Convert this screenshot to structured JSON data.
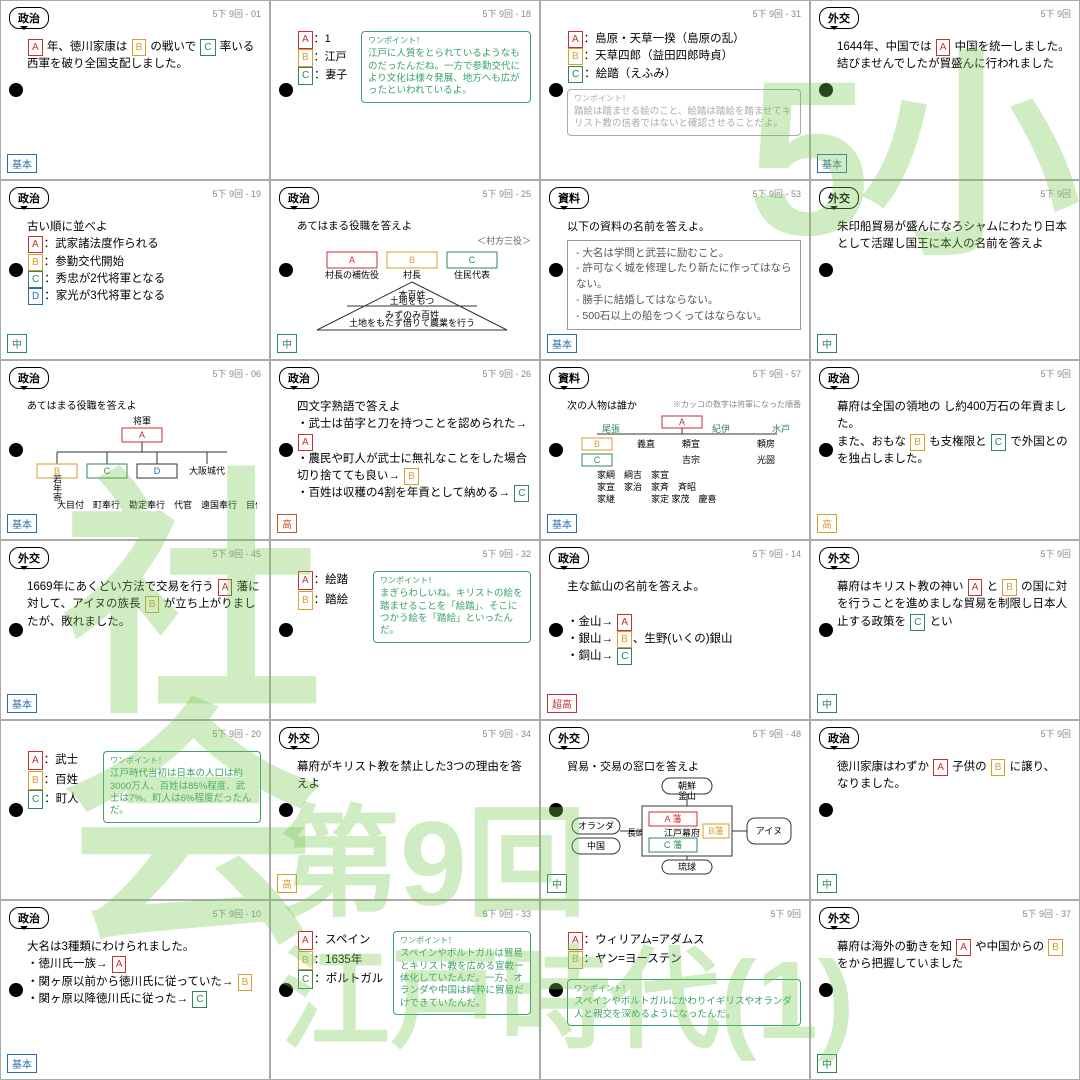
{
  "watermark_top_right": "5小",
  "watermark_left": "社会",
  "watermark_bottom_1": "第9回",
  "watermark_bottom_2": "江戸時代(1)",
  "cards": [
    {
      "tag": "政治",
      "num": "5下 9回 - 01",
      "lvl": "b",
      "text": "<span class='A'></span> 年、徳川家康は <span class='B'></span> の戦いで <span class='C'></span> 率いる西軍を破り全国支配しました。"
    },
    {
      "tag": "",
      "num": "5下 9回 - 18",
      "lvl": "",
      "html": "<div class='row'><div style='flex:0 0 58px;font-size:11px;line-height:1.6'><span class='A'></span>：1<br><span class='B'></span>：江戸<br><span class='C'></span>：妻子</div><div class='tip' style='flex:1'><span class='th'>ワンポイント！</span>江戸に人質をとられているようなものだったんだね。一方で参勤交代により文化は様々発展、地方へも広がったといわれているよ。</div></div>"
    },
    {
      "tag": "",
      "num": "5下 9回 - 31",
      "lvl": "",
      "html": "<div style='font-size:11.5px;line-height:1.5'><span class='A'></span>：島原・天草一揆（島原の乱）<br><span class='B'></span>：天草四郎（益田四郎時貞）<br><span class='C'></span>：絵踏（えふみ）</div><div class='tip g' style='margin-top:6px'><span class='th'>ワンポイント！</span>踏絵は踏ませる絵のこと、絵踏は踏絵を踏ませてキリスト教の信者ではないと確認させることだよ。</div>"
    },
    {
      "tag": "外交",
      "num": "5下 9回",
      "lvl": "b",
      "text": "1644年、中国では <span class='A'></span> 中国を統一しました。結びませんでしたが貿盛んに行われました"
    },
    {
      "tag": "政治",
      "num": "5下 9回 - 19",
      "lvl": "m",
      "html": "古い順に並べよ<br><span class='A'></span>：武家諸法度作られる<br><span class='B'></span>：参勤交代開始<br><span class='C'></span>：秀忠が2代将軍となる<br><span class='D'></span>：家光が3代将軍となる"
    },
    {
      "tag": "政治",
      "num": "5下 9回 - 25",
      "lvl": "m",
      "html": "<div style='font-size:10.5px'>あてはまる役職を答えよ<br><div style='text-align:right;font-size:9px;color:#666'>＜村方三役＞</div></div><svg class='mini' width='230' height='88' viewBox='0 0 230 88'><rect class='rbox' x='30' y='4' width='50' height='16'/><text x='55' y='15' text-anchor='middle' fill='#c53030'>A</text><rect class='ybox' x='90' y='4' width='50' height='16'/><text x='115' y='15' text-anchor='middle' fill='#d69e2e'>B</text><rect class='gbox' x='150' y='4' width='50' height='16'/><text x='175' y='15' text-anchor='middle' fill='#2f855a'>C</text><text x='55' y='30' text-anchor='middle' font-size='8'>村長の補佐役</text><text x='115' y='30' text-anchor='middle' font-size='8'>村長</text><text x='175' y='30' text-anchor='middle' font-size='8'>住民代表</text><polygon class='ln' points='115,34 210,82 20,82'/><line class='ln' x1='50' y1='58' x2='180' y2='58'/><text x='115' y='50' text-anchor='middle'>本百姓</text><text x='115' y='56' text-anchor='middle' font-size='7'>土地をもつ</text><text x='115' y='70' text-anchor='middle'>みずのみ百姓</text><text x='115' y='78' text-anchor='middle' font-size='7'>土地をもたず借りて農業を行う</text></svg>"
    },
    {
      "tag": "資料",
      "num": "5下 9回 - 53",
      "lvl": "b",
      "html": "<div style='font-size:11px'>以下の資料の名前を答えよ。</div><div style='border:1px solid #999;padding:5px 8px;font-size:10.5px;line-height:1.5;margin-top:4px;color:#555'>- 大名は学問と武芸に励むこと。<br>- 許可なく城を修理したり新たに作ってはならない。<br>- 勝手に結婚してはならない。<br>- 500石以上の船をつくってはならない。</div>"
    },
    {
      "tag": "外交",
      "num": "5下 9回",
      "lvl": "m",
      "text": "朱印船貿易が盛んになろシャムにわたり日本として活躍し国王に本人の名前を答えよ"
    },
    {
      "tag": "政治",
      "num": "5下 9回 - 06",
      "lvl": "b",
      "html": "<div style='font-size:10px'>あてはまる役職を答えよ</div><svg class='mini' width='230' height='100' viewBox='0 0 230 100'><text x='115' y='10' text-anchor='middle'>将軍</text><rect class='rbox' x='95' y='14' width='40' height='14'/><text x='115' y='24' text-anchor='middle' fill='#c53030'>A</text><line class='ln' x1='115' y1='28' x2='115' y2='38'/><line class='ln' x1='30' y1='38' x2='200' y2='38'/><line class='ln' x1='30' y1='38' x2='30' y2='50'/><line class='ln' x1='80' y1='38' x2='80' y2='50'/><line class='ln' x1='130' y1='38' x2='130' y2='50'/><line class='ln' x1='180' y1='38' x2='180' y2='50'/><rect class='ybox' x='10' y='50' width='40' height='14'/><text x='30' y='60' text-anchor='middle' fill='#d69e2e'>B</text><text x='30' y='74' text-anchor='middle' font-size='7' writing-mode='tb'>若年寄</text><rect class='gbox' x='60' y='50' width='40' height='14'/><text x='80' y='60' text-anchor='middle' fill='#2f855a'>C</text><rect class='box' x='110' y='50' width='40' height='14' stroke='#2b6cb0'/><text x='130' y='60' text-anchor='middle' fill='#2b6cb0'>D</text><text x='180' y='60' text-anchor='middle' font-size='8'>大阪城代</text><text x='30' y='94' font-size='7'>大目付　町奉行　勘定奉行　代官　遠国奉行　目付</text></svg>"
    },
    {
      "tag": "政治",
      "num": "5下 9回 - 26",
      "lvl": "h",
      "html": "四文字熟語で答えよ<br>・武士は苗字と刀を持つことを認められた→ <span class='A'></span><br>・農民や町人が武士に無礼なことをした場合切り捨てても良い→ <span class='B'></span><br>・百姓は収穫の4割を年貢として納める→ <span class='C'></span>"
    },
    {
      "tag": "資料",
      "num": "5下 9回 - 57",
      "lvl": "b",
      "html": "<div style='font-size:10px'>次の人物は誰か <span style='font-size:8px;color:#888;float:right'>※カッコの数字は将軍になった順番</span></div><svg class='mini' width='230' height='100' viewBox='0 0 230 100'><line class='ln' x1='115' y1='8' x2='115' y2='20'/><rect class='rbox' x='95' y='2' width='40' height='12'/><text x='115' y='11' text-anchor='middle' fill='#c53030'>A</text><line class='ln' x1='30' y1='20' x2='210' y2='20'/><text x='35' y='18' font-size='8' fill='#2f855a'>尾張</text><text x='145' y='18' font-size='8' fill='#2f855a'>紀伊</text><text x='205' y='18' font-size='8' fill='#2f855a'>水戸</text><rect class='ybox' x='15' y='24' width='30' height='12'/><text x='30' y='33' text-anchor='middle' fill='#d69e2e'>B</text><text x='70' y='33'>義直</text><text x='115' y='33'>頼宣</text><text x='190' y='33'>頼房</text><rect class='gbox' x='15' y='40' width='30' height='12'/><text x='30' y='49' text-anchor='middle' fill='#2f855a'>C</text><text x='115' y='49'>吉宗</text><text x='190' y='49'>光圀</text><text x='30' y='64'>家綱　綱吉　家宣</text><text x='30' y='76'>家宣　家治　家斉　斉昭</text><text x='30' y='88'>家継　　　　家定 家茂　慶喜</text></svg>"
    },
    {
      "tag": "政治",
      "num": "5下 9回",
      "lvl": "y",
      "text": "幕府は全国の領地の し約400万石の年貢ました。<br>また、おもな <span class='B'></span> も支権限と <span class='C'></span> で外国とのを独占しました。"
    },
    {
      "tag": "外交",
      "num": "5下 9回 - 45",
      "lvl": "b",
      "text": "1669年にあくどい方法で交易を行う <span class='A'></span> 藩に対して、アイヌの族長 <span class='B'></span> が立ち上がりましたが、敗れました。"
    },
    {
      "tag": "",
      "num": "5下 9回 - 32",
      "lvl": "",
      "html": "<div class='row'><div style='flex:0 0 70px;font-size:11.5px;line-height:1.7'><span class='A'></span>：絵踏<br><span class='B'></span>：踏絵</div><div class='tip' style='flex:1'><span class='th'>ワンポイント！</span>まぎらわしいね。キリストの絵を踏ませることを「絵踏」、そこにつかう絵を「踏絵」といったんだ。</div></div>"
    },
    {
      "tag": "政治",
      "num": "5下 9回 - 14",
      "lvl": "s",
      "html": "主な鉱山の名前を答えよ。<br><br>・金山→ <span class='A'></span><br>・銀山→ <span class='B'></span>、生野(いくの)銀山<br>・銅山→ <span class='C'></span>"
    },
    {
      "tag": "外交",
      "num": "5下 9回",
      "lvl": "m",
      "text": "幕府はキリスト教の神い <span class='A'></span> と <span class='B'></span> の国に対を行うことを進めましな貿易を制限し日本人止する政策を <span class='C'></span> とい"
    },
    {
      "tag": "",
      "num": "5下 9回 - 20",
      "lvl": "",
      "html": "<div class='row'><div style='flex:0 0 70px;font-size:11.5px;line-height:1.7'><span class='A'></span>：武士<br><span class='B'></span>：百姓<br><span class='C'></span>：町人</div><div class='tip' style='flex:1'><span class='th'>ワンポイント！</span>江戸時代当初は日本の人口は約3000万人、百姓は85%程度、武士は7%、町人は6%程度だったんだ。</div></div>"
    },
    {
      "tag": "外交",
      "num": "5下 9回 - 34",
      "lvl": "y",
      "text": "幕府がキリスト教を禁止した3つの理由を答えよ"
    },
    {
      "tag": "外交",
      "num": "5下 9回 - 48",
      "lvl": "m",
      "html": "<div style='font-size:11px'>貿易・交易の窓口を答えよ</div><svg class='mini' width='230' height='100' viewBox='0 0 230 100'><rect class='box' x='95' y='2' width='50' height='16' rx='8'/><text x='120' y='13' text-anchor='middle'>朝鮮</text><text x='120' y='23' text-anchor='middle' font-size='7'>釜山</text><rect class='box' x='5' y='42' width='48' height='16' rx='8'/><text x='29' y='53' text-anchor='middle'>オランダ</text><rect class='box' x='5' y='62' width='48' height='16' rx='8'/><text x='29' y='73' text-anchor='middle'>中国</text><text x='60' y='60' font-size='8'>長崎</text><rect class='box' x='75' y='30' width='90' height='50'/><rect class='rbox' x='82' y='36' width='48' height='14'/><text x='106' y='46' text-anchor='middle' fill='#c53030'>A 藩</text><text x='115' y='60' text-anchor='middle' font-size='8'>江戸幕府</text><rect class='gbox' x='82' y='62' width='48' height='14'/><text x='106' y='72' text-anchor='middle' fill='#2f855a'>C 藩</text><rect class='ybox' x='136' y='48' width='26' height='14'/><text x='149' y='58' text-anchor='middle' fill='#d69e2e' font-size='8'>B藩</text><rect class='box' x='180' y='42' width='44' height='26' rx='8'/><text x='202' y='58' text-anchor='middle' font-size='8'>アイヌ</text><rect class='box' x='95' y='84' width='50' height='14' rx='7'/><text x='120' y='94' text-anchor='middle'>琉球</text><line class='ln' x1='120' y1='18' x2='120' y2='30'/><line class='ln' x1='53' y1='55' x2='75' y2='55'/><line class='ln' x1='165' y1='55' x2='180' y2='55'/><line class='ln' x1='120' y1='80' x2='120' y2='84'/></svg>"
    },
    {
      "tag": "政治",
      "num": "5下 9回",
      "lvl": "m",
      "text": "徳川家康はわずか <span class='A'></span> 子供の <span class='B'></span> に譲り、<br>なりました。"
    },
    {
      "tag": "政治",
      "num": "5下 9回 - 10",
      "lvl": "b",
      "html": "大名は3種類にわけられました。<br>・徳川氏一族→ <span class='A'></span><br>・関ヶ原以前から徳川氏に従っていた→ <span class='B'></span><br>・関ヶ原以降徳川氏に従った→ <span class='C'></span>"
    },
    {
      "tag": "",
      "num": "5下 9回 - 33",
      "lvl": "",
      "html": "<div class='row'><div style='flex:0 0 90px;font-size:11.5px;line-height:1.7'><span class='A'></span>：スペイン<br><span class='B'></span>：1635年<br><span class='C'></span>：ポルトガル</div><div class='tip' style='flex:1'><span class='th'>ワンポイント！</span>スペインやポルトガルは貿易とキリスト教を広める宣教一体化していたんだ。一方、オランダや中国は純粋に貿易だけできていたんだ。</div></div>"
    },
    {
      "tag": "",
      "num": "5下 9回",
      "lvl": "",
      "html": "<div style='font-size:11.5px;line-height:1.6'><span class='A'></span>：ウィリアム=アダムス<br><span class='B'></span>：ヤン=ヨーステン</div><div class='tip' style='margin-top:10px'><span class='th'>ワンポイント！</span>スペインやポルトガルにかわりイギリスやオランダ人と親交を深めるようになったんだ。</div>"
    },
    {
      "tag": "外交",
      "num": "5下 9回 - 37",
      "lvl": "m",
      "text": "幕府は海外の動きを知 <span class='A'></span> や中国からの <span class='B'></span> をから把握していました"
    }
  ]
}
